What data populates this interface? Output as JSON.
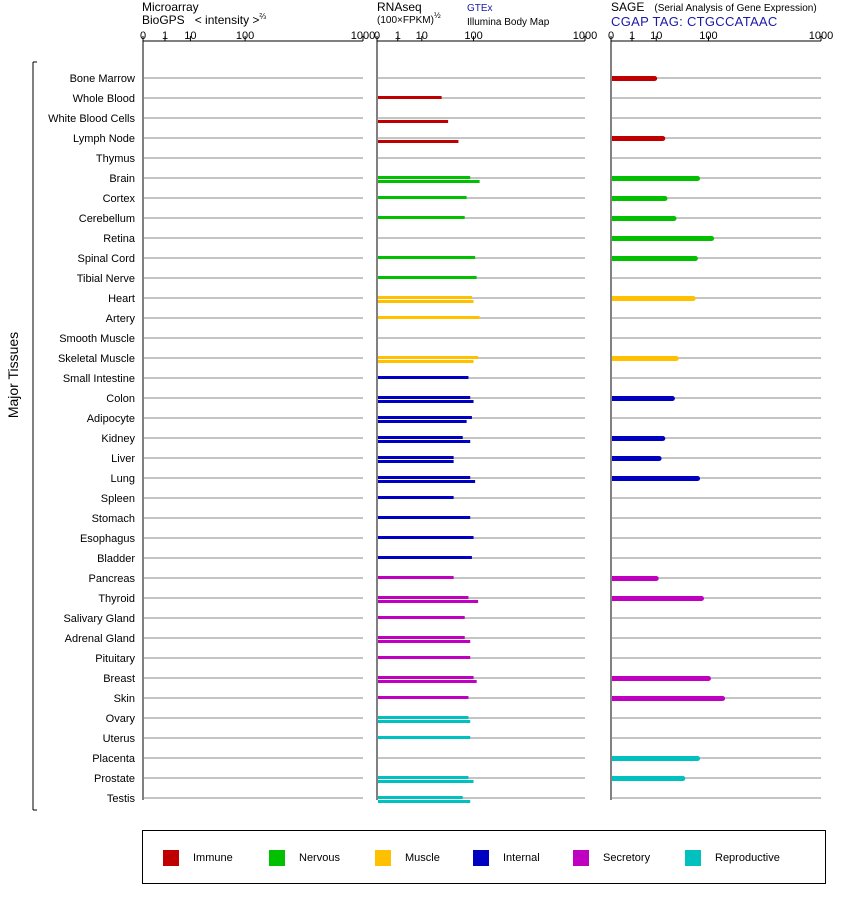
{
  "headers": {
    "microarray": {
      "line1": "Microarray",
      "line2": "BioGPS",
      "intensity": "< intensity >",
      "exponent": "⅔"
    },
    "rnaseq": {
      "line1": "RNAseq",
      "line2": "(100×FPKM)",
      "exponent": "½",
      "source1": "GTEx",
      "source2": "Illumina Body Map"
    },
    "sage": {
      "line1": "SAGE",
      "subtitle": "(Serial Analysis of Gene Expression)",
      "tag": "CGAP TAG: CTGCCATAAC"
    }
  },
  "group_label": "Major Tissues",
  "legend": [
    {
      "key": "immune",
      "label": "Immune",
      "color": "#c00000"
    },
    {
      "key": "nervous",
      "label": "Nervous",
      "color": "#00c000"
    },
    {
      "key": "muscle",
      "label": "Muscle",
      "color": "#ffc000"
    },
    {
      "key": "internal",
      "label": "Internal",
      "color": "#0000c0"
    },
    {
      "key": "secretory",
      "label": "Secretory",
      "color": "#c000c0"
    },
    {
      "key": "reproductive",
      "label": "Reproductive",
      "color": "#00c0c0"
    }
  ],
  "chart_data": {
    "type": "bar",
    "orientation": "horizontal",
    "x_scale": "cube-root-like (0,1,10,100,1000)",
    "tick_labels": [
      "0",
      "1",
      "10",
      "100",
      "1000"
    ],
    "tick_values": [
      0,
      1,
      10,
      100,
      1000
    ],
    "xlim": [
      0,
      1000
    ],
    "panels": [
      "Microarray",
      "RNAseq",
      "SAGE"
    ],
    "tissues": [
      {
        "name": "Bone Marrow",
        "system": "immune",
        "microarray": [],
        "rnaseq": [],
        "sage": 9
      },
      {
        "name": "Whole Blood",
        "system": "immune",
        "microarray": [],
        "rnaseq": [
          30
        ],
        "sage": null
      },
      {
        "name": "White Blood Cells",
        "system": "immune",
        "microarray": [],
        "rnaseq": [
          null,
          40
        ],
        "sage": null
      },
      {
        "name": "Lymph Node",
        "system": "immune",
        "microarray": [],
        "rnaseq": [
          null,
          60
        ],
        "sage": 15
      },
      {
        "name": "Thymus",
        "system": "immune",
        "microarray": [],
        "rnaseq": [],
        "sage": null
      },
      {
        "name": "Brain",
        "system": "nervous",
        "microarray": [],
        "rnaseq": [
          90,
          120
        ],
        "sage": 70
      },
      {
        "name": "Cortex",
        "system": "nervous",
        "microarray": [],
        "rnaseq": [
          80
        ],
        "sage": 17
      },
      {
        "name": "Cerebellum",
        "system": "nervous",
        "microarray": [],
        "rnaseq": [
          75
        ],
        "sage": 27
      },
      {
        "name": "Retina",
        "system": "nervous",
        "microarray": [],
        "rnaseq": [],
        "sage": 110
      },
      {
        "name": "Spinal Cord",
        "system": "nervous",
        "microarray": [],
        "rnaseq": [
          105
        ],
        "sage": 65
      },
      {
        "name": "Tibial Nerve",
        "system": "nervous",
        "microarray": [],
        "rnaseq": [
          110
        ],
        "sage": null
      },
      {
        "name": "Heart",
        "system": "muscle",
        "microarray": [],
        "rnaseq": [
          95,
          100
        ],
        "sage": 60
      },
      {
        "name": "Artery",
        "system": "muscle",
        "microarray": [],
        "rnaseq": [
          120
        ],
        "sage": null
      },
      {
        "name": "Smooth Muscle",
        "system": "muscle",
        "microarray": [],
        "rnaseq": [],
        "sage": null
      },
      {
        "name": "Skeletal Muscle",
        "system": "muscle",
        "microarray": [],
        "rnaseq": [
          115,
          100
        ],
        "sage": 30
      },
      {
        "name": "Small Intestine",
        "system": "internal",
        "microarray": [],
        "rnaseq": [
          85
        ],
        "sage": null
      },
      {
        "name": "Colon",
        "system": "internal",
        "microarray": [],
        "rnaseq": [
          90,
          100
        ],
        "sage": 25
      },
      {
        "name": "Adipocyte",
        "system": "internal",
        "microarray": [],
        "rnaseq": [
          95,
          80
        ],
        "sage": null
      },
      {
        "name": "Kidney",
        "system": "internal",
        "microarray": [],
        "rnaseq": [
          70,
          90
        ],
        "sage": 15
      },
      {
        "name": "Liver",
        "system": "internal",
        "microarray": [],
        "rnaseq": [
          50,
          50
        ],
        "sage": 12
      },
      {
        "name": "Lung",
        "system": "internal",
        "microarray": [],
        "rnaseq": [
          90,
          105
        ],
        "sage": 70
      },
      {
        "name": "Spleen",
        "system": "internal",
        "microarray": [],
        "rnaseq": [
          50
        ],
        "sage": null
      },
      {
        "name": "Stomach",
        "system": "internal",
        "microarray": [],
        "rnaseq": [
          90
        ],
        "sage": null
      },
      {
        "name": "Esophagus",
        "system": "internal",
        "microarray": [],
        "rnaseq": [
          100
        ],
        "sage": null
      },
      {
        "name": "Bladder",
        "system": "internal",
        "microarray": [],
        "rnaseq": [
          95
        ],
        "sage": null
      },
      {
        "name": "Pancreas",
        "system": "secretory",
        "microarray": [],
        "rnaseq": [
          50
        ],
        "sage": 10
      },
      {
        "name": "Thyroid",
        "system": "secretory",
        "microarray": [],
        "rnaseq": [
          85,
          115
        ],
        "sage": 80
      },
      {
        "name": "Salivary Gland",
        "system": "secretory",
        "microarray": [],
        "rnaseq": [
          75
        ],
        "sage": null
      },
      {
        "name": "Adrenal Gland",
        "system": "secretory",
        "microarray": [],
        "rnaseq": [
          75,
          90
        ],
        "sage": null
      },
      {
        "name": "Pituitary",
        "system": "secretory",
        "microarray": [],
        "rnaseq": [
          90
        ],
        "sage": null
      },
      {
        "name": "Breast",
        "system": "secretory",
        "microarray": [],
        "rnaseq": [
          100,
          110
        ],
        "sage": 100
      },
      {
        "name": "Skin",
        "system": "secretory",
        "microarray": [],
        "rnaseq": [
          85
        ],
        "sage": 150
      },
      {
        "name": "Ovary",
        "system": "reproductive",
        "microarray": [],
        "rnaseq": [
          85,
          90
        ],
        "sage": null
      },
      {
        "name": "Uterus",
        "system": "reproductive",
        "microarray": [],
        "rnaseq": [
          90
        ],
        "sage": null
      },
      {
        "name": "Placenta",
        "system": "reproductive",
        "microarray": [],
        "rnaseq": [],
        "sage": 70
      },
      {
        "name": "Prostate",
        "system": "reproductive",
        "microarray": [],
        "rnaseq": [
          85,
          100
        ],
        "sage": 40
      },
      {
        "name": "Testis",
        "system": "reproductive",
        "microarray": [],
        "rnaseq": [
          70,
          90
        ],
        "sage": null
      }
    ]
  }
}
